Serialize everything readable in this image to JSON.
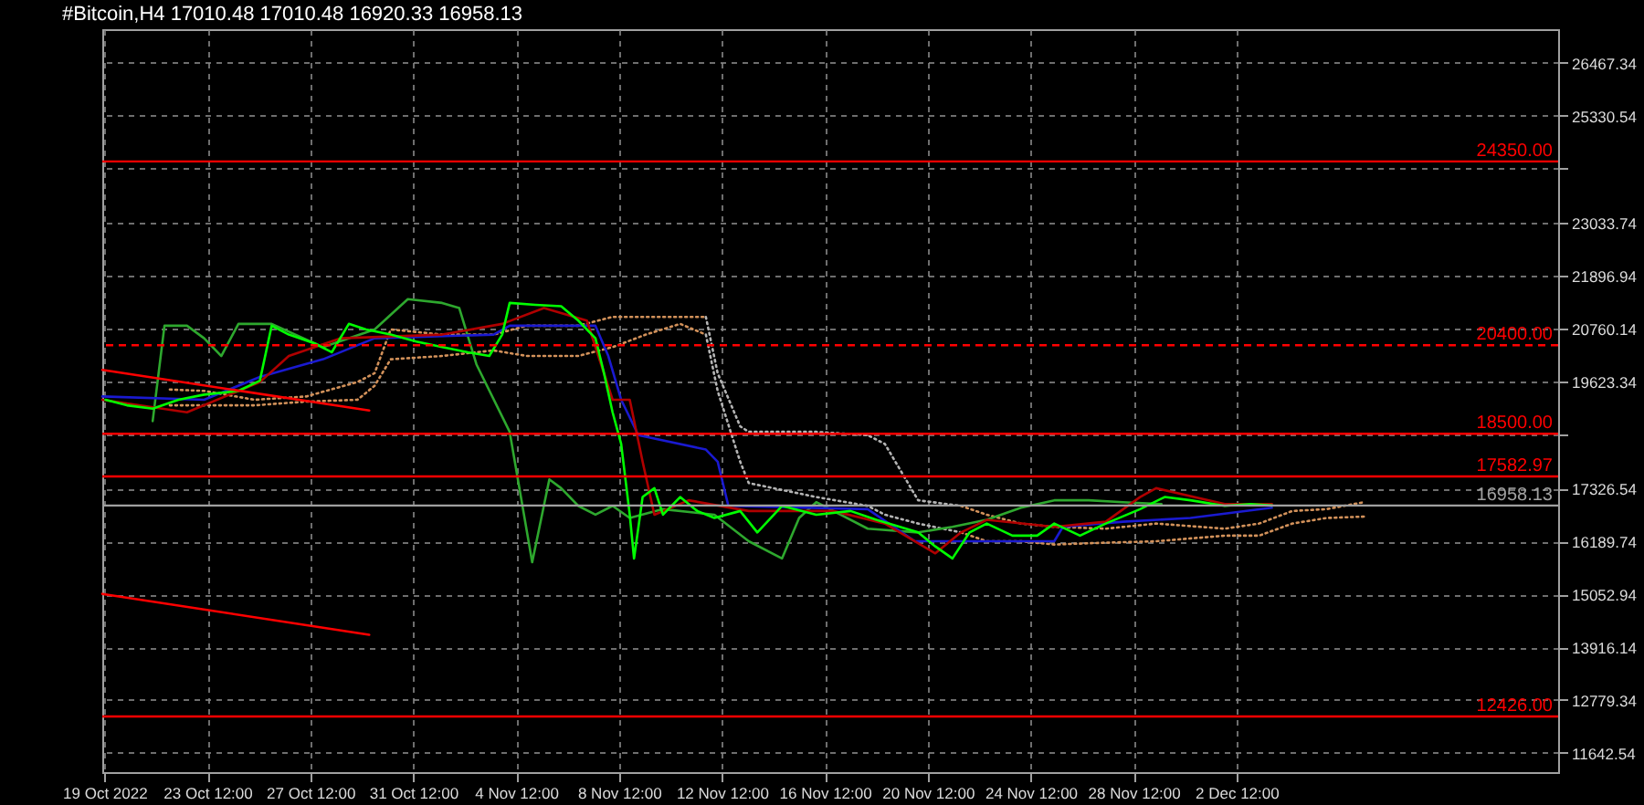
{
  "chart_data": {
    "type": "line",
    "title": "#Bitcoin,H4 17010.48 17010.48 16920.33 16958.13",
    "xlim": [
      "2022-10-19T10:00",
      "2022-12-15T00:00"
    ],
    "xticks": [
      {
        "value": "2022-10-19T12:00",
        "label": "19 Oct 2022"
      },
      {
        "value": "2022-10-23T12:00",
        "label": "23 Oct 12:00"
      },
      {
        "value": "2022-10-27T12:00",
        "label": "27 Oct 12:00"
      },
      {
        "value": "2022-10-31T12:00",
        "label": "31 Oct 12:00"
      },
      {
        "value": "2022-11-04T12:00",
        "label": "4 Nov 12:00"
      },
      {
        "value": "2022-11-08T12:00",
        "label": "8 Nov 12:00"
      },
      {
        "value": "2022-11-12T12:00",
        "label": "12 Nov 12:00"
      },
      {
        "value": "2022-11-16T12:00",
        "label": "16 Nov 12:00"
      },
      {
        "value": "2022-11-20T12:00",
        "label": "20 Nov 12:00"
      },
      {
        "value": "2022-11-24T12:00",
        "label": "24 Nov 12:00"
      },
      {
        "value": "2022-11-28T12:00",
        "label": "28 Nov 12:00"
      },
      {
        "value": "2022-12-02T12:00",
        "label": "2 Dec 12:00"
      }
    ],
    "ylim": [
      11230,
      27190
    ],
    "yticks": [
      26467.34,
      25330.54,
      {
        "value": 24193.74,
        "label": null
      },
      23033.74,
      21896.94,
      20760.14,
      19623.34,
      {
        "value": 18486.54,
        "label": null
      },
      17326.54,
      16189.74,
      15052.94,
      13916.14,
      12779.34,
      11642.54
    ],
    "grid": true,
    "series": [
      {
        "color": "#d2915a",
        "line_style": "dotted",
        "x": [
          "2022-10-22T01:00",
          "2022-10-23T09:00",
          "2022-10-25T08:00",
          "2022-10-27T08:00",
          "2022-10-29T08:00",
          "2022-10-30T00:00",
          "2022-10-30T15:00",
          "2022-11-01T15:00",
          "2022-11-03T15:00",
          "2022-11-04T22:00",
          "2022-11-06T22:00",
          "2022-11-08T06:00",
          "2022-11-09T13:00",
          "2022-11-10T21:00",
          "2022-11-11T21:00"
        ],
        "values": [
          19450,
          19420,
          19230,
          19300,
          19610,
          19800,
          20740,
          20630,
          20630,
          20820,
          20820,
          21010,
          21010,
          21010,
          21010
        ]
      },
      {
        "color": "#d2915a",
        "line_style": "dotted",
        "x": [
          "2022-10-22T01:00",
          "2022-10-23T09:00",
          "2022-10-25T08:00",
          "2022-10-27T08:00",
          "2022-10-29T08:00",
          "2022-10-30T00:00",
          "2022-10-30T15:00",
          "2022-11-01T15:00",
          "2022-11-03T15:00",
          "2022-11-04T22:00",
          "2022-11-06T22:00",
          "2022-11-08T06:00",
          "2022-11-09T13:00",
          "2022-11-10T21:00",
          "2022-11-11T21:00"
        ],
        "values": [
          19110,
          19110,
          19110,
          19190,
          19230,
          19530,
          20100,
          20170,
          20290,
          20170,
          20170,
          20360,
          20630,
          20860,
          20630
        ]
      },
      {
        "color": "#b4b4b4",
        "line_style": "dotted",
        "x": [
          "2022-11-11T21:00",
          "2022-11-12T08:00",
          "2022-11-13T05:00",
          "2022-11-13T13:00",
          "2022-11-16T04:00",
          "2022-11-18T04:00",
          "2022-11-18T20:00",
          "2022-11-20T03:00",
          "2022-11-21T19:00"
        ],
        "values": [
          21010,
          19800,
          18660,
          18540,
          18540,
          18470,
          18280,
          17070,
          16950
        ]
      },
      {
        "color": "#b4b4b4",
        "line_style": "dotted",
        "x": [
          "2022-11-11T21:00",
          "2022-11-12T08:00",
          "2022-11-13T05:00",
          "2022-11-13T13:00",
          "2022-11-16T04:00",
          "2022-11-18T04:00",
          "2022-11-18T20:00",
          "2022-11-20T03:00",
          "2022-11-21T19:00"
        ],
        "values": [
          20630,
          19420,
          17900,
          17440,
          17140,
          16950,
          16760,
          16570,
          16380
        ]
      },
      {
        "color": "#d2915a",
        "line_style": "dotted",
        "x": [
          "2022-11-21T19:00",
          "2022-11-22T19:00",
          "2022-11-24T03:00",
          "2022-11-25T10:00",
          "2022-11-27T10:00",
          "2022-11-29T09:00",
          "2022-12-02T01:00",
          "2022-12-03T09:00",
          "2022-12-04T16:00",
          "2022-12-06T00:00",
          "2022-12-07T11:00"
        ],
        "values": [
          16950,
          16760,
          16570,
          16500,
          16460,
          16570,
          16460,
          16570,
          16840,
          16880,
          17030
        ]
      },
      {
        "color": "#d2915a",
        "line_style": "dotted",
        "x": [
          "2022-11-21T19:00",
          "2022-11-22T19:00",
          "2022-11-24T03:00",
          "2022-11-25T10:00",
          "2022-11-27T10:00",
          "2022-11-29T09:00",
          "2022-12-02T01:00",
          "2022-12-03T09:00",
          "2022-12-04T16:00",
          "2022-12-06T00:00",
          "2022-12-07T11:00"
        ],
        "values": [
          16380,
          16190,
          16190,
          16120,
          16160,
          16190,
          16310,
          16310,
          16570,
          16690,
          16720
        ]
      },
      {
        "color": "#2ea82e",
        "x": [
          "2022-10-21T09:00",
          "2022-10-21T20:00",
          "2022-10-22T17:00",
          "2022-10-23T09:00",
          "2022-10-24T01:00",
          "2022-10-24T17:00",
          "2022-10-26T00:00",
          "2022-10-28T00:00",
          "2022-10-30T00:00",
          "2022-10-31T07:00",
          "2022-11-01T15:00",
          "2022-11-02T07:00",
          "2022-11-02T23:00",
          "2022-11-04T06:00",
          "2022-11-05T03:00",
          "2022-11-05T19:00",
          "2022-11-06T06:00",
          "2022-11-06T22:00",
          "2022-11-07T14:00",
          "2022-11-08T06:00",
          "2022-11-08T22:00",
          "2022-11-10T05:00",
          "2022-11-12T05:00",
          "2022-11-13T13:00",
          "2022-11-14T20:00",
          "2022-11-15T12:00",
          "2022-11-16T04:00",
          "2022-11-18T04:00",
          "2022-11-20T03:00",
          "2022-11-21T11:00",
          "2022-11-22T19:00",
          "2022-11-24T03:00",
          "2022-11-25T10:00",
          "2022-11-26T18:00",
          "2022-11-28T02:00",
          "2022-11-29T14:00"
        ],
        "values": [
          18770,
          20820,
          20820,
          20550,
          20170,
          20860,
          20860,
          20360,
          20740,
          21390,
          21310,
          21200,
          19990,
          18540,
          15740,
          17520,
          17330,
          16950,
          16760,
          16950,
          16690,
          16880,
          16760,
          16190,
          15820,
          16690,
          17030,
          16460,
          16380,
          16500,
          16650,
          16910,
          17070,
          17070,
          17030,
          16990
        ]
      },
      {
        "color": "#1a1ad0",
        "x": [
          "2022-10-19T10:00",
          "2022-10-23T09:00",
          "2022-10-25T13:00",
          "2022-10-28T00:00",
          "2022-10-30T00:00",
          "2022-11-03T15:00",
          "2022-11-04T06:00",
          "2022-11-07T14:00",
          "2022-11-08T02:00",
          "2022-11-08T14:00",
          "2022-11-09T06:00",
          "2022-11-11T21:00",
          "2022-11-12T08:00",
          "2022-11-12T18:00",
          "2022-11-18T04:00",
          "2022-11-20T00:00",
          "2022-11-25T10:00",
          "2022-11-25T18:00",
          "2022-11-28T02:00",
          "2022-11-30T17:00",
          "2022-12-03T21:00"
        ],
        "values": [
          19300,
          19230,
          19720,
          20100,
          20550,
          20630,
          20820,
          20820,
          20170,
          19230,
          18470,
          18160,
          17900,
          16950,
          16880,
          16190,
          16190,
          16500,
          16610,
          16690,
          16910
        ]
      },
      {
        "color": "#b00000",
        "x": [
          "2022-10-19T10:00",
          "2022-10-22T17:00",
          "2022-10-25T13:00",
          "2022-10-26T16:00",
          "2022-10-28T16:00",
          "2022-11-01T15:00",
          "2022-11-03T23:00",
          "2022-11-05T14:00",
          "2022-11-07T06:00",
          "2022-11-08T06:00",
          "2022-11-08T22:00",
          "2022-11-09T10:00",
          "2022-11-09T21:00",
          "2022-11-11T05:00",
          "2022-11-13T13:00",
          "2022-11-16T20:00",
          "2022-11-18T20:00",
          "2022-11-20T19:00",
          "2022-11-21T19:00",
          "2022-11-22T19:00",
          "2022-11-25T10:00",
          "2022-11-27T10:00",
          "2022-11-28T18:00",
          "2022-11-29T09:00",
          "2022-12-02T01:00",
          "2022-12-03T21:00"
        ],
        "values": [
          19230,
          18960,
          19610,
          20170,
          20550,
          20630,
          20860,
          21200,
          20930,
          19230,
          19230,
          17900,
          16760,
          17070,
          16840,
          16840,
          16570,
          15930,
          16380,
          16650,
          16500,
          16610,
          17140,
          17330,
          16990,
          16990
        ]
      },
      {
        "color": "#00ff00",
        "x": [
          "2022-10-19T13:00",
          "2022-10-20T09:00",
          "2022-10-21T09:00",
          "2022-10-22T09:00",
          "2022-10-23T09:00",
          "2022-10-24T17:00",
          "2022-10-25T13:00",
          "2022-10-26T00:00",
          "2022-10-26T16:00",
          "2022-10-27T16:00",
          "2022-10-28T08:00",
          "2022-10-29T00:00",
          "2022-10-29T16:00",
          "2022-10-30T15:00",
          "2022-10-31T15:00",
          "2022-11-01T15:00",
          "2022-11-02T15:00",
          "2022-11-03T11:00",
          "2022-11-03T23:00",
          "2022-11-04T06:00",
          "2022-11-05T06:00",
          "2022-11-06T06:00",
          "2022-11-06T22:00",
          "2022-11-07T14:00",
          "2022-11-07T22:00",
          "2022-11-08T06:00",
          "2022-11-08T14:00",
          "2022-11-08T22:00",
          "2022-11-09T02:00",
          "2022-11-09T10:00",
          "2022-11-09T21:00",
          "2022-11-10T05:00",
          "2022-11-10T21:00",
          "2022-11-11T13:00",
          "2022-11-12T05:00",
          "2022-11-13T05:00",
          "2022-11-13T21:00",
          "2022-11-14T20:00",
          "2022-11-16T04:00",
          "2022-11-17T12:00",
          "2022-11-18T12:00",
          "2022-11-20T03:00",
          "2022-11-20T19:00",
          "2022-11-21T11:00",
          "2022-11-22T03:00",
          "2022-11-22T19:00",
          "2022-11-23T19:00",
          "2022-11-24T18:00",
          "2022-11-25T10:00",
          "2022-11-26T10:00",
          "2022-11-27T10:00",
          "2022-11-28T18:00",
          "2022-11-29T17:00",
          "2022-11-30T17:00",
          "2022-12-02T01:00",
          "2022-12-03T01:00",
          "2022-12-03T21:00"
        ],
        "values": [
          19230,
          19110,
          19040,
          19230,
          19340,
          19420,
          19640,
          20820,
          20630,
          20440,
          20250,
          20860,
          20740,
          20630,
          20480,
          20360,
          20250,
          20170,
          20630,
          21310,
          21270,
          21240,
          20930,
          20550,
          19800,
          18960,
          18280,
          16760,
          15820,
          17140,
          17330,
          16760,
          17140,
          16840,
          16690,
          16840,
          16380,
          16950,
          16760,
          16840,
          16650,
          16380,
          16080,
          15820,
          16380,
          16570,
          16310,
          16310,
          16570,
          16310,
          16570,
          16880,
          17140,
          17070,
          16950,
          16990,
          16958.13
        ]
      },
      {
        "color": "#ff0000",
        "x": [
          "2022-10-19T10:00",
          "2022-10-29T19:00"
        ],
        "values": [
          19870,
          19000
        ]
      },
      {
        "color": "#ff0000",
        "x": [
          "2022-10-19T10:00",
          "2022-10-29T19:00"
        ],
        "values": [
          15060,
          14180
        ]
      }
    ],
    "ref_lines": [
      {
        "axis": "y",
        "value": 24350,
        "label": "24350.00",
        "color": "#ff0000"
      },
      {
        "axis": "y",
        "value": 20400,
        "label": "20400.00",
        "color": "#ff0000",
        "line_style": "dashed"
      },
      {
        "axis": "y",
        "value": 18500,
        "label": "18500.00",
        "color": "#ff0000"
      },
      {
        "axis": "y",
        "value": 17582.97,
        "label": "17582.97",
        "color": "#ff0000"
      },
      {
        "axis": "y",
        "value": 16958.13,
        "label": "16958.13",
        "color": "#a0a0a0"
      },
      {
        "axis": "y",
        "value": 12426,
        "label": "12426.00",
        "color": "#ff0000"
      }
    ]
  }
}
